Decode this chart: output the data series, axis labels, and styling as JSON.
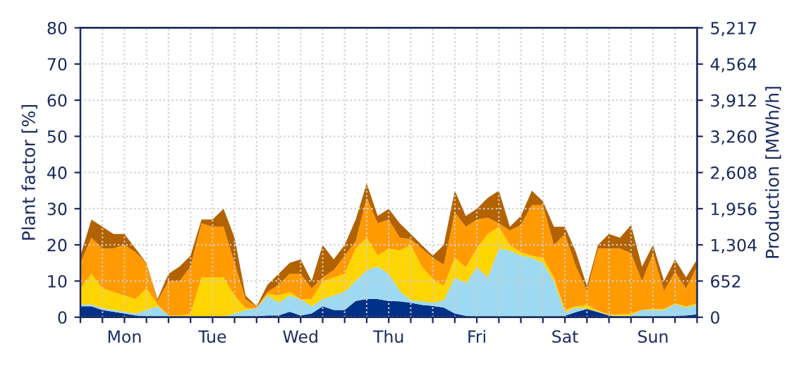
{
  "chart_data": {
    "type": "area",
    "stacked": true,
    "ylabel": "Plant factor [%]",
    "y2label": "Production [MWh/h]",
    "categories": [
      null,
      null,
      null,
      null,
      "Mon",
      null,
      null,
      null,
      null,
      null,
      null,
      null,
      "Tue",
      null,
      null,
      null,
      null,
      null,
      null,
      null,
      "Wed",
      null,
      null,
      null,
      null,
      null,
      null,
      null,
      "Thu",
      null,
      null,
      null,
      null,
      null,
      null,
      null,
      "Fri",
      null,
      null,
      null,
      null,
      null,
      null,
      null,
      "Sat",
      null,
      null,
      null,
      null,
      null,
      null,
      null,
      "Sun",
      null,
      null,
      null,
      null
    ],
    "series": [
      {
        "color": "#003087",
        "values": [
          3,
          3,
          2,
          1.5,
          1,
          0.5,
          0.3,
          0,
          0,
          0,
          0,
          0,
          0,
          0,
          0,
          0,
          0.3,
          0.5,
          0.5,
          1.5,
          0.5,
          1,
          3,
          2,
          2,
          4.5,
          5,
          5,
          4.5,
          4.4,
          4,
          3.4,
          3.1,
          2.7,
          1,
          0.4,
          0,
          0,
          0,
          0,
          0,
          0,
          0,
          0,
          0.4,
          1.4,
          2.3,
          1.4,
          0.5,
          0,
          0,
          0,
          0,
          0,
          0.4,
          0.5,
          0.8
        ]
      },
      {
        "color": "#9dd9f0",
        "values": [
          0.5,
          0.5,
          0.5,
          0.5,
          0.5,
          0.5,
          1.7,
          3,
          0.5,
          0,
          0,
          0,
          0,
          0,
          1,
          2,
          2.2,
          5.5,
          3.5,
          4.5,
          4.5,
          2,
          2,
          4,
          5,
          5.5,
          8,
          9,
          7.5,
          2.9,
          0.7,
          1,
          0.9,
          2,
          10,
          8.9,
          13.8,
          11,
          19,
          18.4,
          17,
          16.4,
          15,
          10,
          1,
          1.3,
          0,
          0.2,
          0.1,
          0.4,
          0.5,
          2,
          2,
          2,
          3.2,
          2.2,
          2.6
        ]
      },
      {
        "color": "#ffd500",
        "values": [
          4.5,
          8.5,
          5.5,
          5,
          4.5,
          4,
          6,
          0.5,
          0,
          0.5,
          1,
          11,
          11,
          11,
          5,
          0.5,
          0,
          0.5,
          2,
          1,
          0,
          2,
          5,
          5,
          5,
          9,
          9,
          3,
          7,
          11.1,
          15.3,
          9.6,
          6.6,
          3.9,
          5.4,
          4.5,
          5.2,
          12,
          6,
          1.6,
          1,
          0.6,
          1.4,
          1,
          0.6,
          0.3,
          1.1,
          0.2,
          0.2,
          0.4,
          0.5,
          0,
          0.3,
          0.3,
          0.2,
          0.3,
          0.4
        ]
      },
      {
        "color": "#ff9a00",
        "values": [
          7,
          10,
          11,
          12,
          14,
          13,
          7,
          1,
          9.5,
          9.5,
          13,
          15,
          14,
          14,
          9,
          2.5,
          0.3,
          0.5,
          3,
          5,
          7,
          3,
          1,
          2,
          5,
          2,
          11,
          9,
          8,
          3.6,
          1.6,
          5,
          5.8,
          5.9,
          12.6,
          11.2,
          8,
          4.5,
          1,
          4,
          7.5,
          14,
          14.6,
          9,
          21,
          11,
          3.9,
          17.2,
          18.2,
          18.2,
          16.7,
          8,
          15.4,
          5,
          8.7,
          5,
          10.2
        ]
      },
      {
        "color": "#b36200",
        "values": [
          2,
          5,
          6,
          4,
          3,
          1,
          0,
          0.5,
          2,
          4,
          3,
          1,
          2,
          5,
          7,
          1,
          0.2,
          2,
          3,
          3,
          4,
          2,
          9,
          3,
          3,
          6,
          4,
          2,
          3,
          4,
          1.4,
          1,
          0.6,
          5.5,
          6,
          3,
          3,
          5.5,
          9,
          1,
          2.5,
          4,
          1,
          5,
          2,
          4,
          1.3,
          1,
          4,
          3,
          7.8,
          4,
          2.3,
          2.7,
          3.5,
          3,
          2
        ]
      }
    ],
    "ylim": [
      0,
      80
    ],
    "yticks": [
      0,
      10,
      20,
      30,
      40,
      50,
      60,
      70,
      80
    ],
    "y2lim": [
      0,
      5217
    ],
    "y2ticks": [
      0,
      652,
      {
        "value": 1304,
        "label": "1,304"
      },
      {
        "value": 1956,
        "label": "1,956"
      },
      {
        "value": 2608,
        "label": "2,608"
      },
      {
        "value": 3260,
        "label": "3,260"
      },
      {
        "value": 3912,
        "label": "3,912"
      },
      {
        "value": 4564,
        "label": "4,564"
      },
      {
        "value": 5217,
        "label": "5,217"
      }
    ],
    "grid": true
  }
}
